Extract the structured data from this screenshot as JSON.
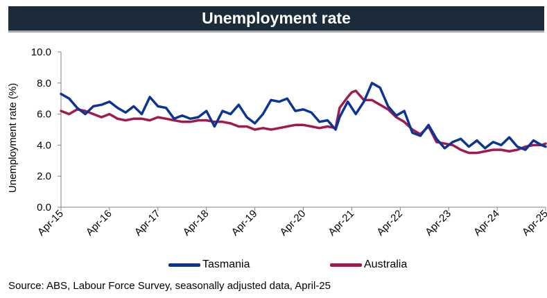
{
  "header": {
    "title": "Unemployment rate"
  },
  "footer": {
    "source": "Source: ABS, Labour Force Survey, seasonally adjusted data, April-25"
  },
  "chart_data": {
    "type": "line",
    "title": "Unemployment rate",
    "xlabel": "",
    "ylabel": "Unemployment rate (%)",
    "ylim": [
      0,
      10
    ],
    "yticks": [
      "0.0",
      "2.0",
      "4.0",
      "6.0",
      "8.0",
      "10.0"
    ],
    "xlim": [
      "2015-04",
      "2025-04"
    ],
    "xticks": [
      "Apr-15",
      "Apr-16",
      "Apr-17",
      "Apr-18",
      "Apr-19",
      "Apr-20",
      "Apr-21",
      "Apr-22",
      "Apr-23",
      "Apr-24",
      "Apr-25"
    ],
    "grid": false,
    "legend": "bottom",
    "series": [
      {
        "name": "Tasmania",
        "color": "#0a3595",
        "points": [
          [
            "2015-04",
            7.3
          ],
          [
            "2015-06",
            7.0
          ],
          [
            "2015-08",
            6.4
          ],
          [
            "2015-10",
            6.0
          ],
          [
            "2015-12",
            6.5
          ],
          [
            "2016-02",
            6.6
          ],
          [
            "2016-04",
            6.8
          ],
          [
            "2016-06",
            6.4
          ],
          [
            "2016-08",
            6.1
          ],
          [
            "2016-10",
            6.5
          ],
          [
            "2016-12",
            6.0
          ],
          [
            "2017-02",
            7.1
          ],
          [
            "2017-04",
            6.5
          ],
          [
            "2017-06",
            6.4
          ],
          [
            "2017-08",
            5.7
          ],
          [
            "2017-10",
            5.9
          ],
          [
            "2017-12",
            5.7
          ],
          [
            "2018-02",
            5.8
          ],
          [
            "2018-04",
            6.2
          ],
          [
            "2018-06",
            5.2
          ],
          [
            "2018-08",
            6.2
          ],
          [
            "2018-10",
            6.0
          ],
          [
            "2018-12",
            6.6
          ],
          [
            "2019-02",
            5.8
          ],
          [
            "2019-04",
            5.4
          ],
          [
            "2019-06",
            6.0
          ],
          [
            "2019-08",
            6.9
          ],
          [
            "2019-10",
            6.8
          ],
          [
            "2019-12",
            7.0
          ],
          [
            "2020-02",
            6.2
          ],
          [
            "2020-04",
            6.3
          ],
          [
            "2020-06",
            6.1
          ],
          [
            "2020-08",
            5.5
          ],
          [
            "2020-10",
            5.6
          ],
          [
            "2020-12",
            5.0
          ],
          [
            "2021-01",
            5.8
          ],
          [
            "2021-03",
            6.8
          ],
          [
            "2021-05",
            6.0
          ],
          [
            "2021-07",
            6.8
          ],
          [
            "2021-09",
            8.0
          ],
          [
            "2021-11",
            7.7
          ],
          [
            "2022-01",
            6.5
          ],
          [
            "2022-03",
            5.9
          ],
          [
            "2022-05",
            6.2
          ],
          [
            "2022-07",
            4.8
          ],
          [
            "2022-09",
            4.6
          ],
          [
            "2022-11",
            5.3
          ],
          [
            "2023-01",
            4.4
          ],
          [
            "2023-03",
            3.8
          ],
          [
            "2023-05",
            4.2
          ],
          [
            "2023-07",
            4.4
          ],
          [
            "2023-09",
            3.9
          ],
          [
            "2023-11",
            4.3
          ],
          [
            "2024-01",
            3.8
          ],
          [
            "2024-03",
            4.2
          ],
          [
            "2024-05",
            4.0
          ],
          [
            "2024-07",
            4.5
          ],
          [
            "2024-09",
            3.9
          ],
          [
            "2024-11",
            3.7
          ],
          [
            "2025-01",
            4.3
          ],
          [
            "2025-03",
            4.0
          ],
          [
            "2025-04",
            3.9
          ]
        ]
      },
      {
        "name": "Australia",
        "color": "#a3184e",
        "points": [
          [
            "2015-04",
            6.2
          ],
          [
            "2015-06",
            6.0
          ],
          [
            "2015-08",
            6.3
          ],
          [
            "2015-10",
            6.2
          ],
          [
            "2015-12",
            6.0
          ],
          [
            "2016-02",
            5.8
          ],
          [
            "2016-04",
            6.0
          ],
          [
            "2016-06",
            5.7
          ],
          [
            "2016-08",
            5.6
          ],
          [
            "2016-10",
            5.7
          ],
          [
            "2016-12",
            5.7
          ],
          [
            "2017-02",
            5.6
          ],
          [
            "2017-04",
            5.8
          ],
          [
            "2017-06",
            5.7
          ],
          [
            "2017-08",
            5.6
          ],
          [
            "2017-10",
            5.5
          ],
          [
            "2017-12",
            5.5
          ],
          [
            "2018-02",
            5.6
          ],
          [
            "2018-04",
            5.6
          ],
          [
            "2018-06",
            5.5
          ],
          [
            "2018-08",
            5.5
          ],
          [
            "2018-10",
            5.4
          ],
          [
            "2018-12",
            5.2
          ],
          [
            "2019-02",
            5.2
          ],
          [
            "2019-04",
            5.0
          ],
          [
            "2019-06",
            5.1
          ],
          [
            "2019-08",
            5.0
          ],
          [
            "2019-10",
            5.1
          ],
          [
            "2019-12",
            5.2
          ],
          [
            "2020-02",
            5.3
          ],
          [
            "2020-04",
            5.3
          ],
          [
            "2020-06",
            5.2
          ],
          [
            "2020-08",
            5.1
          ],
          [
            "2020-10",
            5.2
          ],
          [
            "2020-12",
            5.1
          ],
          [
            "2021-01",
            6.4
          ],
          [
            "2021-03",
            7.1
          ],
          [
            "2021-04",
            7.4
          ],
          [
            "2021-05",
            7.5
          ],
          [
            "2021-07",
            6.9
          ],
          [
            "2021-09",
            6.9
          ],
          [
            "2021-11",
            6.6
          ],
          [
            "2022-01",
            6.3
          ],
          [
            "2022-03",
            5.8
          ],
          [
            "2022-05",
            5.5
          ],
          [
            "2022-07",
            5.0
          ],
          [
            "2022-09",
            4.7
          ],
          [
            "2022-11",
            5.2
          ],
          [
            "2023-01",
            4.2
          ],
          [
            "2023-03",
            4.1
          ],
          [
            "2023-05",
            4.0
          ],
          [
            "2023-07",
            3.7
          ],
          [
            "2023-09",
            3.5
          ],
          [
            "2023-11",
            3.5
          ],
          [
            "2024-01",
            3.6
          ],
          [
            "2024-03",
            3.7
          ],
          [
            "2024-05",
            3.7
          ],
          [
            "2024-07",
            3.6
          ],
          [
            "2024-09",
            3.7
          ],
          [
            "2024-11",
            3.9
          ],
          [
            "2025-01",
            4.0
          ],
          [
            "2025-03",
            4.0
          ],
          [
            "2025-04",
            4.1
          ]
        ]
      }
    ]
  }
}
